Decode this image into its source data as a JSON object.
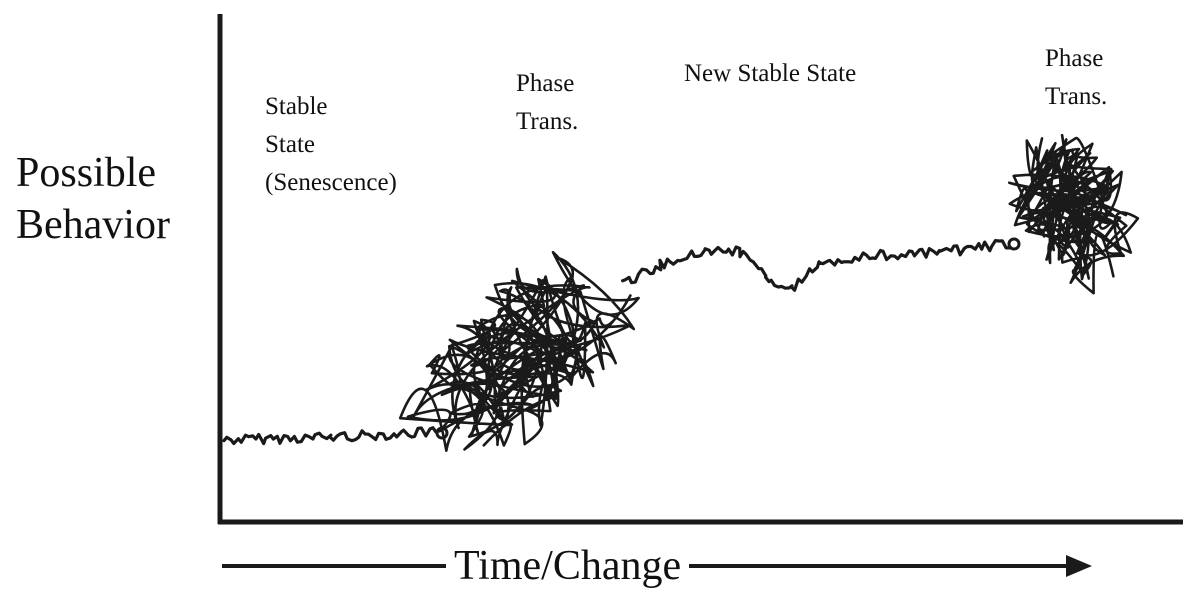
{
  "axes": {
    "y_label_lines": [
      "Possible",
      "Behavior"
    ],
    "x_label": "Time/Change"
  },
  "regions": [
    {
      "name": "stable-state",
      "lines": [
        "Stable",
        "State",
        "(Senescence)"
      ]
    },
    {
      "name": "phase-transition-1",
      "lines": [
        "Phase",
        "Trans."
      ]
    },
    {
      "name": "new-stable-state",
      "lines": [
        "New Stable State"
      ]
    },
    {
      "name": "phase-transition-2",
      "lines": [
        "Phase",
        "Trans."
      ]
    }
  ],
  "colors": {
    "ink": "#1a1a1a",
    "background": "#ffffff"
  }
}
